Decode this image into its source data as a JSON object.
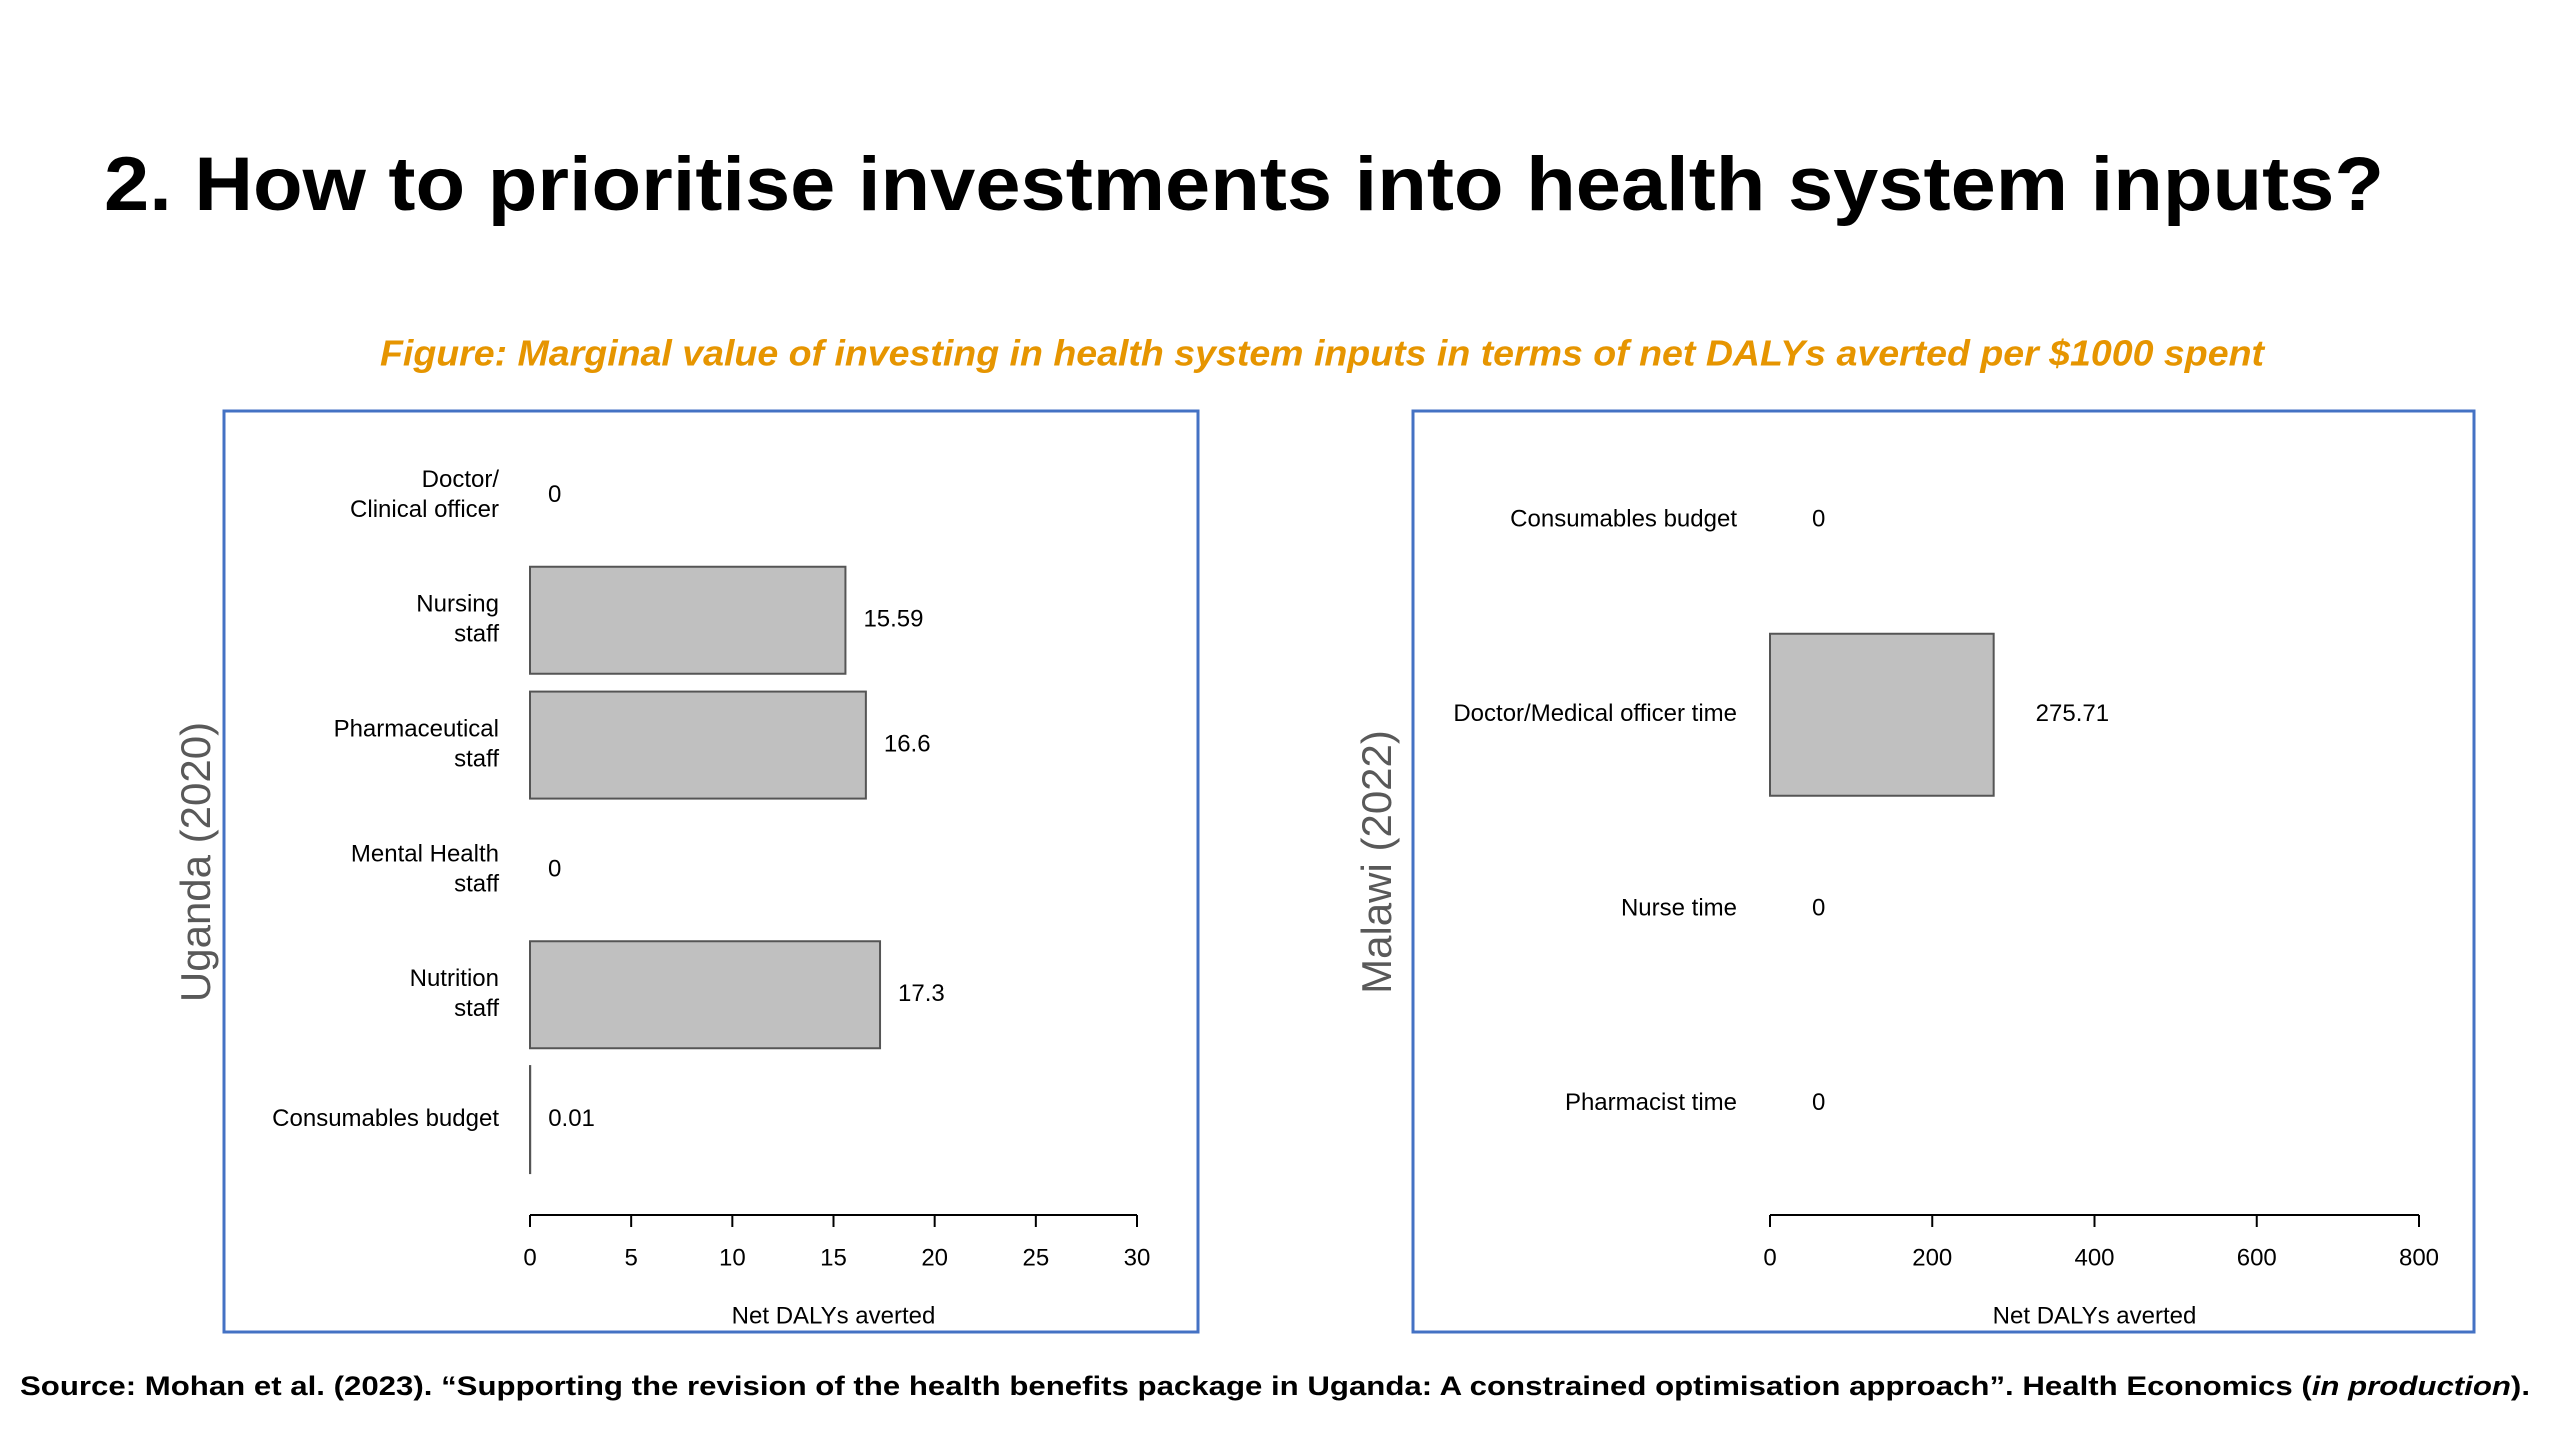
{
  "title": "2. How to prioritise investments into health system inputs?",
  "caption": "Figure: Marginal value of investing in health system inputs in terms of net DALYs averted per $1000 spent",
  "source": {
    "before": "Source: Mohan et al. (2023). “Supporting the revision of the health benefits package in Uganda: A constrained optimisation approach”. Health Economics (",
    "italic": "in production",
    "after": ")."
  },
  "chart_data": [
    {
      "type": "bar",
      "orientation": "horizontal",
      "ylabel": "Uganda (2020)",
      "xlabel": "Net DALYs averted",
      "categories": [
        [
          "Doctor/",
          "Clinical officer"
        ],
        [
          "Nursing",
          "staff"
        ],
        [
          "Pharmaceutical",
          "staff"
        ],
        [
          "Mental Health",
          "staff"
        ],
        [
          "Nutrition",
          "staff"
        ],
        [
          "Consumables budget"
        ]
      ],
      "values": [
        0,
        15.59,
        16.6,
        0,
        17.3,
        0.01
      ],
      "color": "#c0c0c0",
      "xlim": [
        0,
        30
      ],
      "xticks": [
        0,
        5,
        10,
        15,
        20,
        25,
        30
      ]
    },
    {
      "type": "bar",
      "orientation": "horizontal",
      "ylabel": "Malawi (2022)",
      "xlabel": "Net DALYs averted",
      "categories": [
        [
          "Consumables budget"
        ],
        [
          "Doctor/Medical officer time"
        ],
        [
          "Nurse time"
        ],
        [
          "Pharmacist time"
        ]
      ],
      "values": [
        0,
        275.71,
        0,
        0
      ],
      "color": "#c0c0c0",
      "xlim": [
        0,
        800
      ],
      "xticks": [
        0,
        200,
        400,
        600,
        800
      ]
    }
  ]
}
